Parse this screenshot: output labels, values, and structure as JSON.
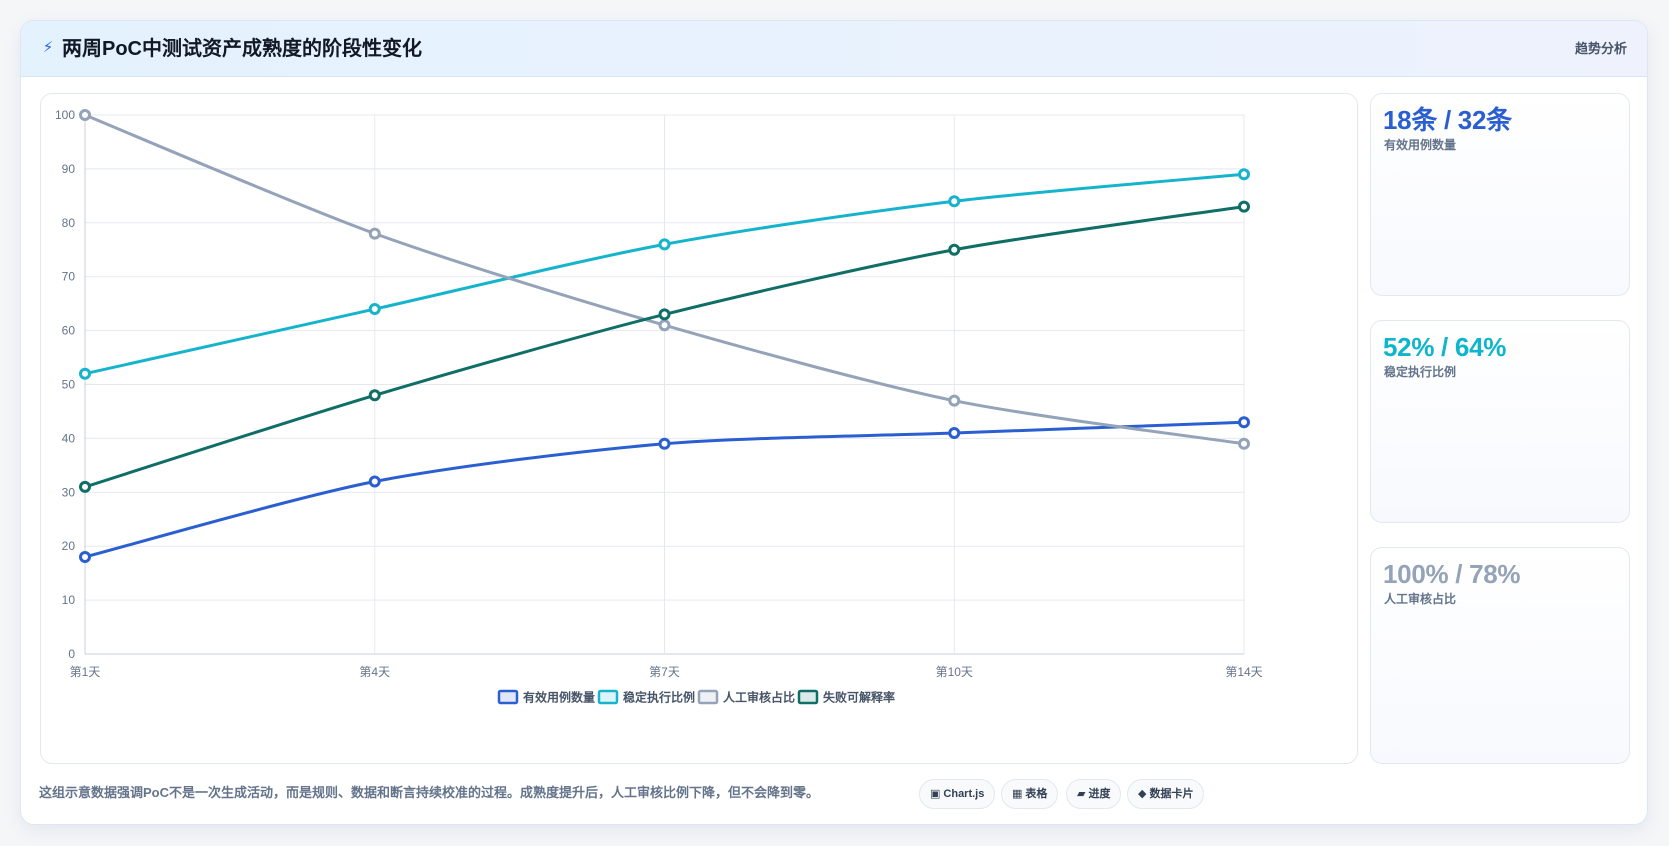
{
  "header": {
    "icon": "lightning-icon",
    "title": "两周PoC中测试资产成熟度的阶段性变化",
    "badge": "趋势分析"
  },
  "colors": {
    "blue": "#2b5fd1",
    "cyan": "#16b4cc",
    "gray": "#94a3b8",
    "teal": "#0f6e66",
    "cyan_text": "#0fb5cc",
    "gray_text": "#94a3b8"
  },
  "chart_data": {
    "type": "line",
    "categories": [
      "第1天",
      "第4天",
      "第7天",
      "第10天",
      "第14天"
    ],
    "ylim": [
      0,
      100
    ],
    "yticks": [
      0,
      10,
      20,
      30,
      40,
      50,
      60,
      70,
      80,
      90,
      100
    ],
    "grid": true,
    "legend_position": "bottom",
    "series": [
      {
        "name": "有效用例数量",
        "color": "#2b5fd1",
        "values": [
          18,
          32,
          39,
          41,
          43
        ]
      },
      {
        "name": "稳定执行比例",
        "color": "#16b4cc",
        "values": [
          52,
          64,
          76,
          84,
          89
        ]
      },
      {
        "name": "人工审核占比",
        "color": "#94a3b8",
        "values": [
          100,
          78,
          61,
          47,
          39
        ]
      },
      {
        "name": "失败可解释率",
        "color": "#0f6e66",
        "values": [
          31,
          48,
          63,
          75,
          83
        ]
      }
    ]
  },
  "stats": [
    {
      "value": "18条 / 32条",
      "label": "有效用例数量",
      "color": "#2b5fd1"
    },
    {
      "value": "52% / 64%",
      "label": "稳定执行比例",
      "color": "#0fb5cc"
    },
    {
      "value": "100% / 78%",
      "label": "人工审核占比",
      "color": "#94a3b8"
    }
  ],
  "footer": {
    "note": "这组示意数据强调PoC不是一次生成活动，而是规则、数据和断言持续校准的过程。成熟度提升后，人工审核比例下降，但不会降到零。",
    "chips": [
      {
        "icon": "▣",
        "icon_name": "chart-icon",
        "label": "Chart.js"
      },
      {
        "icon": "▦",
        "icon_name": "table-icon",
        "label": "表格"
      },
      {
        "icon": "▰",
        "icon_name": "progress-icon",
        "label": "进度"
      },
      {
        "icon": "◆",
        "icon_name": "card-icon",
        "label": "数据卡片"
      }
    ]
  }
}
